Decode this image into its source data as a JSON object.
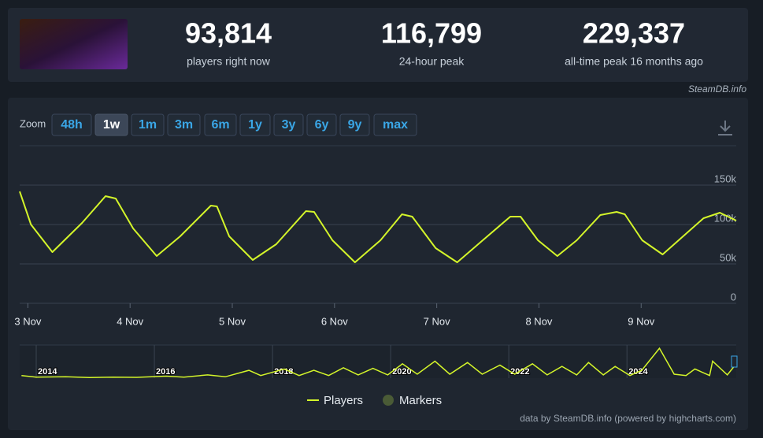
{
  "stats": [
    {
      "value": "93,814",
      "label": "players right now"
    },
    {
      "value": "116,799",
      "label": "24-hour peak"
    },
    {
      "value": "229,337",
      "label": "all-time peak 16 months ago"
    }
  ],
  "source": "SteamDB.info",
  "zoom": {
    "label": "Zoom",
    "options": [
      "48h",
      "1w",
      "1m",
      "3m",
      "6m",
      "1y",
      "3y",
      "6y",
      "9y",
      "max"
    ],
    "active": 1
  },
  "chart_data": {
    "type": "line",
    "x": [
      2.92,
      3.03,
      3.24,
      3.53,
      3.76,
      3.86,
      4.03,
      4.26,
      4.49,
      4.79,
      4.85,
      4.97,
      5.2,
      5.43,
      5.72,
      5.8,
      5.98,
      6.2,
      6.45,
      6.66,
      6.76,
      6.99,
      7.2,
      7.45,
      7.72,
      7.82,
      7.99,
      8.18,
      8.37,
      8.6,
      8.76,
      8.84,
      9.01,
      9.21,
      9.41,
      9.61,
      9.77,
      9.93
    ],
    "series": [
      {
        "name": "Players",
        "color": "#d4f52a",
        "values": [
          142000,
          100000,
          65000,
          102000,
          136000,
          133000,
          95000,
          60000,
          85000,
          124000,
          123000,
          85000,
          55000,
          75000,
          117000,
          116000,
          80000,
          52000,
          80000,
          113000,
          110000,
          70000,
          52000,
          80000,
          110000,
          110000,
          80000,
          60000,
          80000,
          112000,
          116000,
          113000,
          80000,
          62000,
          85000,
          108000,
          115000,
          105000
        ]
      }
    ],
    "xlim": [
      2.92,
      9.93
    ],
    "xticks": [
      {
        "value": 3,
        "label": "3 Nov"
      },
      {
        "value": 4,
        "label": "4 Nov"
      },
      {
        "value": 5,
        "label": "5 Nov"
      },
      {
        "value": 6,
        "label": "6 Nov"
      },
      {
        "value": 7,
        "label": "7 Nov"
      },
      {
        "value": 8,
        "label": "8 Nov"
      },
      {
        "value": 9,
        "label": "9 Nov"
      }
    ],
    "ylim": [
      0,
      150000
    ],
    "yticks": [
      {
        "value": 0,
        "label": "0"
      },
      {
        "value": 50000,
        "label": "50k"
      },
      {
        "value": 100000,
        "label": "100k"
      },
      {
        "value": 150000,
        "label": "150k"
      }
    ],
    "grid": true,
    "markers": {
      "name": "Markers",
      "color": "#4a5b36"
    },
    "navigator": {
      "x": [
        2013.75,
        2014.0,
        2014.5,
        2014.9,
        2015.3,
        2015.7,
        2016.2,
        2016.5,
        2016.9,
        2017.2,
        2017.6,
        2017.8,
        2018.2,
        2018.45,
        2018.7,
        2018.95,
        2019.2,
        2019.45,
        2019.7,
        2019.95,
        2020.2,
        2020.45,
        2020.75,
        2021.0,
        2021.3,
        2021.55,
        2021.85,
        2022.1,
        2022.4,
        2022.65,
        2022.9,
        2023.15,
        2023.35,
        2023.6,
        2023.8,
        2024.05,
        2024.25,
        2024.55,
        2024.8,
        2025.0,
        2025.15,
        2025.4,
        2025.45,
        2025.7,
        2025.85
      ],
      "values": [
        20000,
        8000,
        10000,
        5000,
        8000,
        6000,
        15000,
        8000,
        25000,
        10000,
        60000,
        20000,
        70000,
        20000,
        60000,
        20000,
        80000,
        25000,
        75000,
        25000,
        110000,
        30000,
        130000,
        30000,
        120000,
        30000,
        100000,
        30000,
        110000,
        25000,
        90000,
        25000,
        120000,
        25000,
        90000,
        20000,
        60000,
        229337,
        30000,
        20000,
        70000,
        20000,
        130000,
        25000,
        110000
      ],
      "xlim": [
        2013.72,
        2025.85
      ],
      "xticks": [
        2014,
        2016,
        2018,
        2020,
        2022,
        2024
      ],
      "ylim": [
        0,
        230000
      ]
    },
    "credits": "data by SteamDB.info (powered by highcharts.com)"
  }
}
